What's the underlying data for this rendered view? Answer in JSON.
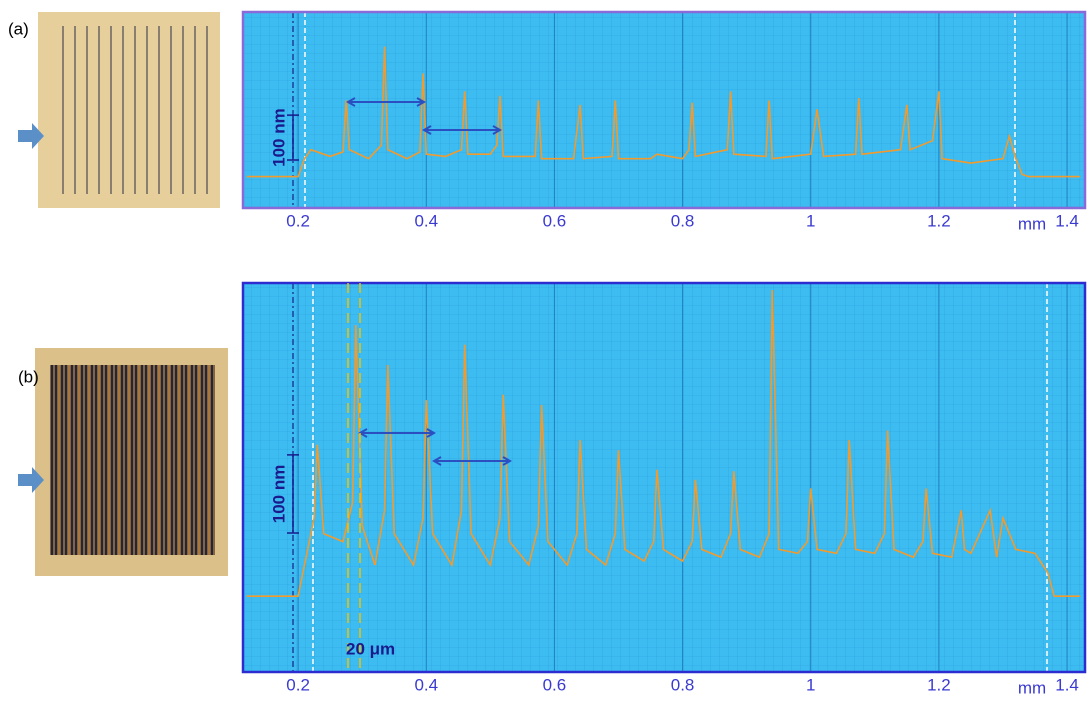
{
  "chart_data": [
    {
      "type": "line",
      "panel_label": "(a)",
      "x_label": "mm",
      "scale_bar": {
        "value": 100,
        "label": "100 nm"
      },
      "xlim": [
        0.114,
        1.428
      ],
      "ylim": [
        -70,
        367
      ],
      "xticks": [
        0.2,
        0.4,
        0.6,
        0.8,
        1,
        1.2,
        1.4
      ],
      "grid": true,
      "color": "#f39a2c",
      "x": [
        0.12,
        0.2,
        0.21,
        0.22,
        0.25,
        0.27,
        0.275,
        0.28,
        0.31,
        0.33,
        0.335,
        0.34,
        0.37,
        0.39,
        0.395,
        0.4,
        0.43,
        0.455,
        0.46,
        0.465,
        0.5,
        0.51,
        0.515,
        0.52,
        0.57,
        0.575,
        0.58,
        0.63,
        0.64,
        0.645,
        0.69,
        0.695,
        0.7,
        0.75,
        0.76,
        0.8,
        0.81,
        0.815,
        0.82,
        0.87,
        0.875,
        0.88,
        0.93,
        0.935,
        0.94,
        1.0,
        1.01,
        1.02,
        1.07,
        1.075,
        1.08,
        1.14,
        1.15,
        1.155,
        1.19,
        1.2,
        1.205,
        1.25,
        1.3,
        1.31,
        1.32,
        1.33,
        1.34,
        1.42
      ],
      "values": [
        0,
        0,
        40,
        60,
        45,
        55,
        170,
        60,
        40,
        70,
        290,
        60,
        40,
        55,
        230,
        50,
        45,
        60,
        190,
        50,
        50,
        70,
        180,
        45,
        45,
        170,
        40,
        40,
        160,
        40,
        45,
        170,
        40,
        40,
        50,
        40,
        60,
        165,
        45,
        60,
        190,
        50,
        45,
        170,
        40,
        50,
        150,
        45,
        50,
        175,
        50,
        60,
        160,
        60,
        80,
        190,
        40,
        30,
        40,
        90,
        40,
        5,
        0,
        0
      ]
    },
    {
      "type": "line",
      "panel_label": "(b)",
      "x_label": "mm",
      "scale_bar": {
        "value": 100,
        "label": "100 nm"
      },
      "annotation": "20 μm",
      "xlim": [
        0.114,
        1.428
      ],
      "ylim": [
        -97,
        401
      ],
      "xticks": [
        0.2,
        0.4,
        0.6,
        0.8,
        1,
        1.2,
        1.4
      ],
      "grid": true,
      "color": "#f39a2c",
      "x": [
        0.12,
        0.2,
        0.21,
        0.225,
        0.23,
        0.24,
        0.27,
        0.285,
        0.29,
        0.3,
        0.32,
        0.335,
        0.34,
        0.35,
        0.38,
        0.395,
        0.4,
        0.41,
        0.44,
        0.455,
        0.46,
        0.47,
        0.5,
        0.515,
        0.52,
        0.53,
        0.56,
        0.575,
        0.58,
        0.59,
        0.62,
        0.635,
        0.64,
        0.65,
        0.68,
        0.695,
        0.7,
        0.71,
        0.74,
        0.755,
        0.76,
        0.77,
        0.8,
        0.815,
        0.82,
        0.83,
        0.86,
        0.875,
        0.88,
        0.89,
        0.92,
        0.935,
        0.94,
        0.95,
        0.98,
        0.995,
        1.0,
        1.01,
        1.04,
        1.055,
        1.06,
        1.07,
        1.1,
        1.115,
        1.12,
        1.13,
        1.16,
        1.175,
        1.18,
        1.19,
        1.22,
        1.235,
        1.24,
        1.25,
        1.28,
        1.29,
        1.3,
        1.32,
        1.35,
        1.37,
        1.38,
        1.42
      ],
      "values": [
        0,
        0,
        40,
        100,
        194,
        80,
        70,
        120,
        347,
        90,
        40,
        110,
        296,
        80,
        40,
        100,
        251,
        80,
        40,
        110,
        322,
        80,
        40,
        100,
        258,
        70,
        40,
        90,
        245,
        70,
        40,
        80,
        200,
        60,
        40,
        80,
        187,
        60,
        45,
        70,
        162,
        60,
        45,
        70,
        149,
        60,
        50,
        80,
        160,
        60,
        50,
        80,
        392,
        60,
        55,
        70,
        138,
        60,
        55,
        80,
        200,
        60,
        55,
        80,
        212,
        60,
        50,
        70,
        138,
        55,
        50,
        110,
        60,
        55,
        110,
        50,
        100,
        60,
        55,
        30,
        0,
        0
      ]
    }
  ]
}
